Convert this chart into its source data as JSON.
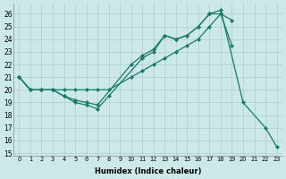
{
  "bg_color": "#cce8e8",
  "line_color": "#1a7a6a",
  "grid_color": "#aacfcf",
  "xlabel": "Humidex (Indice chaleur)",
  "xlim": [
    -0.5,
    23.5
  ],
  "ylim": [
    14.8,
    26.8
  ],
  "yticks": [
    15,
    16,
    17,
    18,
    19,
    20,
    21,
    22,
    23,
    24,
    25,
    26
  ],
  "xticks": [
    0,
    1,
    2,
    3,
    4,
    5,
    6,
    7,
    8,
    9,
    10,
    11,
    12,
    13,
    14,
    15,
    16,
    17,
    18,
    19,
    20,
    21,
    22,
    23
  ],
  "series": [
    {
      "x": [
        0,
        1,
        2,
        3,
        4,
        5,
        6,
        7,
        8,
        10,
        11,
        12,
        13,
        14,
        15,
        16,
        17,
        18,
        19
      ],
      "y": [
        21,
        20,
        20,
        20,
        20,
        20,
        20,
        20,
        20,
        21,
        21.5,
        22.0,
        22.5,
        23.0,
        23.5,
        24.0,
        25.0,
        26.0,
        25.5
      ]
    },
    {
      "x": [
        0,
        1,
        2,
        3,
        4,
        5,
        6,
        7,
        10,
        11,
        12,
        13,
        14,
        15,
        16,
        17,
        18,
        20,
        22,
        23
      ],
      "y": [
        21,
        20,
        20,
        20,
        19.5,
        19.2,
        19.0,
        18.8,
        22.0,
        22.7,
        23.2,
        24.3,
        24.0,
        24.3,
        25.0,
        26.0,
        26.3,
        19.0,
        17.0,
        15.5
      ]
    },
    {
      "x": [
        0,
        1,
        2,
        3,
        4,
        5,
        6,
        7,
        8,
        11,
        12,
        13,
        14,
        15,
        16,
        17,
        18,
        19
      ],
      "y": [
        21,
        20,
        20,
        20,
        19.5,
        19.0,
        18.8,
        18.5,
        19.5,
        22.5,
        23.0,
        24.3,
        24.0,
        24.3,
        25.0,
        26.0,
        26.0,
        23.5
      ]
    }
  ]
}
